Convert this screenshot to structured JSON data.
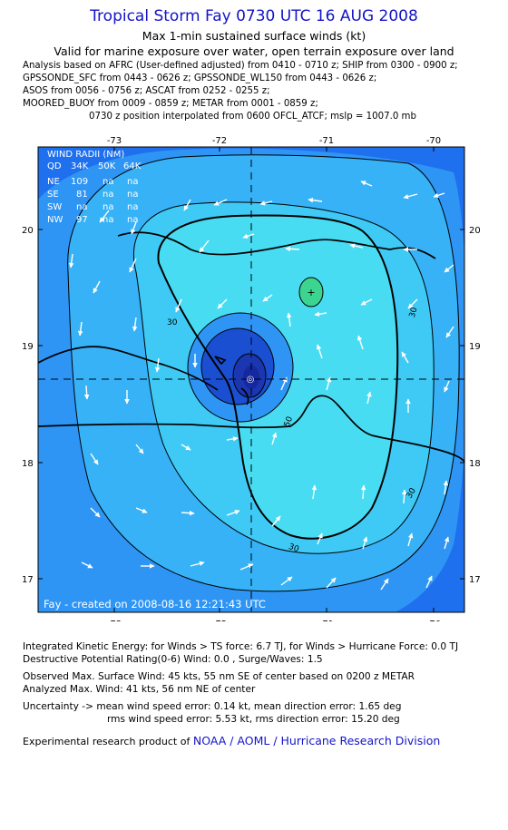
{
  "header": {
    "title": "Tropical Storm Fay 0730 UTC 16 AUG 2008",
    "subtitle1": "Max 1-min sustained surface winds (kt)",
    "subtitle2": "Valid for marine exposure over water, open terrain exposure over land"
  },
  "analysis": [
    "Analysis based on  AFRC (User-defined adjusted) from 0410 - 0710 z;  SHIP from 0300 - 0900 z;",
    "GPSSONDE_SFC from 0443 - 0626 z;  GPSSONDE_WL150 from 0443 - 0626 z;",
    "ASOS from 0056 - 0756 z;  ASCAT from 0252 - 0255 z;",
    "MOORED_BUOY from 0009 - 0859 z;  METAR from 0001 - 0859 z;",
    "0730 z position interpolated from 0600 OFCL_ATCF; mslp = 1007.0 mb"
  ],
  "map": {
    "lon_ticks": [
      "-73",
      "-72",
      "-71",
      "-70"
    ],
    "lat_ticks": [
      "20",
      "19",
      "18",
      "17"
    ],
    "contour_labels": [
      "30",
      "30",
      "30",
      "30",
      "50"
    ],
    "wind_radii": {
      "header": "WIND RADII (NM)",
      "columns": [
        "QD",
        "34K",
        "50K",
        "64K"
      ],
      "rows": [
        [
          "NE",
          "109",
          "na",
          "na"
        ],
        [
          "SE",
          "81",
          "na",
          "na"
        ],
        [
          "SW",
          "na",
          "na",
          "na"
        ],
        [
          "NW",
          "97",
          "na",
          "na"
        ]
      ]
    },
    "credit": "Fay - created on 2008-08-16 12:21:43 UTC",
    "colors": {
      "ocean_outer": "#1e70ee",
      "band_20": "#2f95f5",
      "band_30": "#37b2f6",
      "band_40": "#3fcaf5",
      "band_50": "#48dcf2",
      "land": "#ffffff",
      "local_max": "#3cd590",
      "core_outer": "#1a4fd2",
      "core_inner": "#1a36b0"
    }
  },
  "footer": {
    "ike": "Integrated Kinetic Energy:  for Winds > TS force: 6.7 TJ,  for Winds > Hurricane Force: 0.0 TJ",
    "dpr": "Destructive Potential Rating(0-6)   Wind: 0.0 , Surge/Waves: 1.5",
    "obs_max": "Observed Max. Surface Wind: 45 kts, 55 nm SE of center based on 0200 z METAR",
    "ana_max": "Analyzed Max. Wind: 41 kts, 56 nm NE of center",
    "unc1": "Uncertainty -> mean wind speed error: 0.14 kt,   mean direction error: 1.65 deg",
    "unc2": "rms wind speed error: 5.53 kt,   rms direction error: 15.20 deg",
    "product_prefix": "Experimental research product of",
    "product_link": "NOAA / AOML / Hurricane Research Division"
  }
}
